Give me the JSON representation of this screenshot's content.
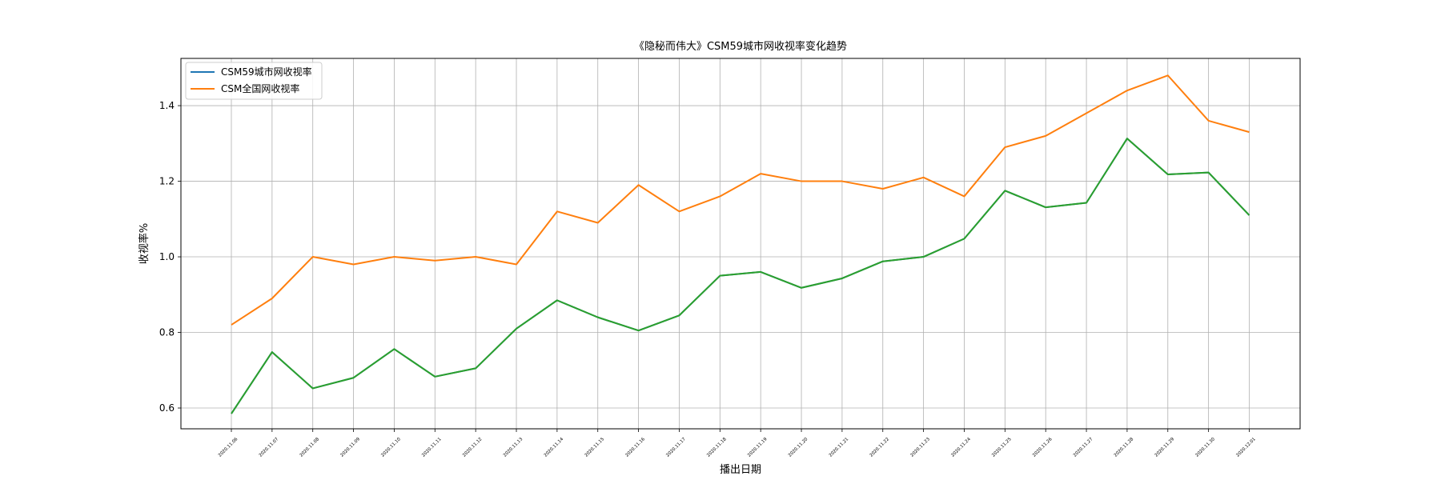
{
  "chart_data": {
    "type": "line",
    "title": "《隐秘而伟大》CSM59城市网收视率变化趋势",
    "xlabel": "播出日期",
    "ylabel": "收视率%",
    "ylim": [
      0.545,
      1.525
    ],
    "yticks": [
      0.6,
      0.8,
      1.0,
      1.2,
      1.4
    ],
    "grid": true,
    "legend_position": "top-left",
    "x": [
      "2020.11.06",
      "2020.11.07",
      "2020.11.08",
      "2020.11.09",
      "2020.11.10",
      "2020.11.11",
      "2020.11.12",
      "2020.11.13",
      "2020.11.14",
      "2020.11.15",
      "2020.11.16",
      "2020.11.17",
      "2020.11.18",
      "2020.11.19",
      "2020.11.20",
      "2020.11.21",
      "2020.11.22",
      "2020.11.23",
      "2020.11.24",
      "2020.11.25",
      "2020.11.26",
      "2020.11.27",
      "2020.11.28",
      "2020.11.29",
      "2020.11.30",
      "2020.12.01"
    ],
    "series": [
      {
        "name": "CSM59城市网收视率",
        "color": "#1f77b4",
        "values": [
          0.585,
          0.748,
          0.652,
          0.68,
          0.756,
          0.683,
          0.705,
          0.81,
          0.885,
          0.84,
          0.805,
          0.845,
          0.95,
          0.96,
          0.918,
          0.943,
          0.988,
          1.0,
          1.048,
          1.175,
          1.131,
          1.143,
          1.313,
          1.218,
          1.223,
          1.11
        ]
      },
      {
        "name": "CSM全国网收视率",
        "color": "#ff7f0e",
        "values": [
          0.82,
          0.89,
          1.0,
          0.98,
          1.0,
          0.99,
          1.0,
          0.98,
          1.12,
          1.09,
          1.19,
          1.12,
          1.16,
          1.22,
          1.2,
          1.2,
          1.18,
          1.21,
          1.16,
          1.29,
          1.32,
          1.38,
          1.44,
          1.48,
          1.36,
          1.33
        ]
      },
      {
        "color": "#2ca02c",
        "values": [
          0.585,
          0.748,
          0.652,
          0.68,
          0.756,
          0.683,
          0.705,
          0.81,
          0.885,
          0.84,
          0.805,
          0.845,
          0.95,
          0.96,
          0.918,
          0.943,
          0.988,
          1.0,
          1.048,
          1.175,
          1.131,
          1.143,
          1.313,
          1.218,
          1.223,
          1.11
        ]
      }
    ]
  }
}
